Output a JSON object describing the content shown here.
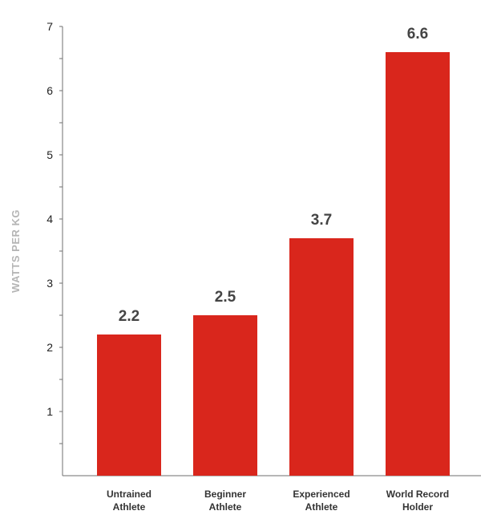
{
  "chart_data": {
    "type": "bar",
    "categories": [
      [
        "Untrained",
        "Athlete"
      ],
      [
        "Beginner",
        "Athlete"
      ],
      [
        "Experienced",
        "Athlete"
      ],
      [
        "World Record",
        "Holder"
      ]
    ],
    "values": [
      2.2,
      2.5,
      3.7,
      6.6
    ],
    "value_labels": [
      "2.2",
      "2.5",
      "3.7",
      "6.6"
    ],
    "ylabel": "WATTS PER KG",
    "ylim": [
      0,
      7
    ],
    "yticks": [
      1,
      2,
      3,
      4,
      5,
      6,
      7
    ],
    "minor_ticks": true,
    "grid": false,
    "colors": {
      "bar": "#d9261c",
      "axis": "#6f6f6f"
    }
  }
}
